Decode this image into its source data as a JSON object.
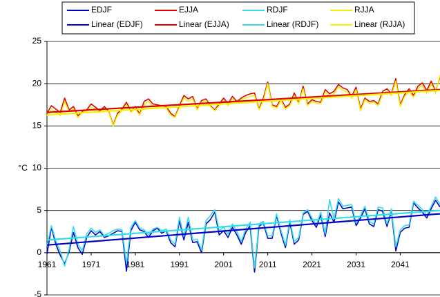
{
  "chart_data": {
    "type": "line",
    "y_label": "°C",
    "xlim": [
      1961,
      2050
    ],
    "xticks": [
      1961,
      1971,
      1981,
      1991,
      2001,
      2011,
      2021,
      2031,
      2041
    ],
    "ylim": [
      -5,
      25
    ],
    "yticks": [
      -5,
      0,
      5,
      10,
      15,
      20,
      25
    ],
    "grid": true,
    "legend": "top",
    "x": [
      1961,
      1962,
      1963,
      1964,
      1965,
      1966,
      1967,
      1968,
      1969,
      1970,
      1971,
      1972,
      1973,
      1974,
      1975,
      1976,
      1977,
      1978,
      1979,
      1980,
      1981,
      1982,
      1983,
      1984,
      1985,
      1986,
      1987,
      1988,
      1989,
      1990,
      1991,
      1992,
      1993,
      1994,
      1995,
      1996,
      1997,
      1998,
      1999,
      2000,
      2001,
      2002,
      2003,
      2004,
      2005,
      2006,
      2007,
      2008,
      2009,
      2010,
      2011,
      2012,
      2013,
      2014,
      2015,
      2016,
      2017,
      2018,
      2019,
      2020,
      2021,
      2022,
      2023,
      2024,
      2025,
      2026,
      2027,
      2028,
      2029,
      2030,
      2031,
      2032,
      2033,
      2034,
      2035,
      2036,
      2037,
      2038,
      2039,
      2040,
      2041,
      2042,
      2043,
      2044,
      2045,
      2046,
      2047,
      2048,
      2049,
      2050
    ],
    "series": [
      {
        "name": "EDJF",
        "color": "#0000c8",
        "values": [
          -0.2,
          3.0,
          1.0,
          -0.3,
          -1.3,
          0.1,
          2.4,
          0.6,
          -0.2,
          1.8,
          2.6,
          2.1,
          2.5,
          1.8,
          2.0,
          2.3,
          2.6,
          2.5,
          -2.2,
          2.6,
          3.6,
          2.7,
          2.5,
          1.8,
          2.6,
          2.9,
          2.3,
          2.6,
          1.2,
          0.7,
          3.8,
          1.5,
          3.6,
          1.2,
          1.3,
          0.0,
          3.4,
          3.9,
          4.8,
          2.1,
          2.6,
          1.8,
          3.0,
          2.1,
          1.0,
          2.4,
          3.2,
          -2.3,
          3.1,
          3.5,
          1.7,
          1.7,
          4.4,
          2.3,
          0.6,
          3.6,
          1.0,
          1.5,
          4.5,
          4.9,
          3.8,
          3.0,
          4.5,
          1.9,
          4.7,
          3.6,
          6.0,
          5.2,
          5.3,
          5.4,
          3.2,
          4.1,
          5.2,
          3.4,
          3.1,
          5.1,
          4.9,
          3.1,
          4.9,
          0.2,
          2.4,
          2.9,
          3.0,
          5.9,
          5.3,
          4.8,
          4.1,
          5.2,
          6.2,
          5.4
        ]
      },
      {
        "name": "EJJA",
        "color": "#e00000",
        "values": [
          16.5,
          17.4,
          17.0,
          16.6,
          18.3,
          16.9,
          17.3,
          16.2,
          16.7,
          16.9,
          17.6,
          17.2,
          16.8,
          17.3,
          16.7,
          15.1,
          16.5,
          17.0,
          17.8,
          16.8,
          17.3,
          16.4,
          17.9,
          18.2,
          17.6,
          17.5,
          17.4,
          17.3,
          16.5,
          16.1,
          17.4,
          18.6,
          18.2,
          18.5,
          17.0,
          18.0,
          18.2,
          17.4,
          16.9,
          17.6,
          18.3,
          17.6,
          18.5,
          17.9,
          18.3,
          18.6,
          18.8,
          18.9,
          17.0,
          18.3,
          20.2,
          17.5,
          17.3,
          18.2,
          17.2,
          17.6,
          18.9,
          17.7,
          19.7,
          17.6,
          18.1,
          17.9,
          17.8,
          19.3,
          18.8,
          19.1,
          19.9,
          19.5,
          19.3,
          18.5,
          19.6,
          17.0,
          18.3,
          17.9,
          18.0,
          17.6,
          19.1,
          19.4,
          18.8,
          20.6,
          17.5,
          18.7,
          19.4,
          18.6,
          19.7,
          20.1,
          19.2,
          20.3,
          19.1,
          20.8
        ]
      },
      {
        "name": "RDJF",
        "color": "#33dde8",
        "values": [
          0.8,
          3.2,
          1.4,
          0.2,
          -1.6,
          0.4,
          3.1,
          1.0,
          0.2,
          2.2,
          2.9,
          2.4,
          2.7,
          2.0,
          2.3,
          2.6,
          2.8,
          2.7,
          -1.3,
          3.0,
          3.8,
          2.9,
          2.7,
          2.1,
          2.8,
          3.0,
          2.6,
          2.8,
          1.5,
          1.0,
          4.2,
          1.9,
          4.2,
          1.5,
          1.6,
          0.3,
          3.8,
          4.4,
          5.1,
          2.6,
          3.0,
          2.2,
          3.4,
          2.5,
          1.3,
          2.8,
          3.6,
          -1.8,
          3.4,
          3.7,
          2.0,
          2.0,
          4.6,
          2.6,
          0.9,
          3.9,
          1.3,
          1.8,
          4.7,
          5.1,
          4.1,
          3.3,
          4.8,
          2.2,
          6.3,
          4.0,
          6.4,
          5.5,
          5.6,
          5.7,
          3.5,
          4.4,
          5.5,
          3.7,
          3.4,
          5.4,
          5.3,
          3.4,
          5.2,
          0.7,
          2.7,
          3.2,
          3.3,
          6.1,
          5.6,
          5.1,
          4.4,
          5.5,
          6.6,
          5.7
        ]
      },
      {
        "name": "RJJA",
        "color": "#f5f000",
        "values": [
          16.2,
          16.9,
          16.7,
          16.2,
          17.9,
          16.7,
          17.0,
          16.0,
          16.6,
          16.8,
          17.2,
          17.0,
          16.6,
          17.1,
          16.6,
          15.0,
          16.3,
          16.8,
          17.5,
          16.6,
          17.0,
          16.3,
          17.5,
          17.9,
          17.3,
          17.2,
          17.2,
          17.1,
          16.3,
          16.0,
          17.2,
          18.3,
          17.9,
          18.2,
          16.9,
          17.8,
          18.0,
          17.3,
          16.8,
          17.4,
          18.0,
          17.4,
          18.2,
          17.7,
          18.1,
          18.3,
          18.5,
          18.6,
          16.9,
          18.0,
          20.0,
          17.3,
          17.1,
          18.0,
          17.0,
          17.4,
          18.6,
          17.6,
          19.4,
          17.4,
          17.9,
          17.7,
          17.6,
          19.0,
          18.5,
          18.8,
          19.6,
          19.2,
          19.0,
          18.3,
          19.3,
          16.8,
          18.1,
          17.7,
          17.8,
          17.4,
          18.8,
          19.1,
          18.6,
          20.3,
          17.3,
          18.5,
          19.1,
          18.4,
          19.4,
          19.8,
          18.9,
          20.0,
          18.9,
          21.0
        ]
      },
      {
        "name": "Linear (EDJF)",
        "color": "#0000c8",
        "x": [
          1961,
          2050
        ],
        "values": [
          0.9,
          4.6
        ]
      },
      {
        "name": "Linear (EJJA)",
        "color": "#e00000",
        "x": [
          1961,
          2050
        ],
        "values": [
          16.6,
          19.3
        ]
      },
      {
        "name": "Linear (RDJF)",
        "color": "#33dde8",
        "x": [
          1961,
          2050
        ],
        "values": [
          1.5,
          5.0
        ]
      },
      {
        "name": "Linear (RJJA)",
        "color": "#f5f000",
        "x": [
          1961,
          2050
        ],
        "values": [
          16.3,
          19.2
        ]
      }
    ]
  }
}
